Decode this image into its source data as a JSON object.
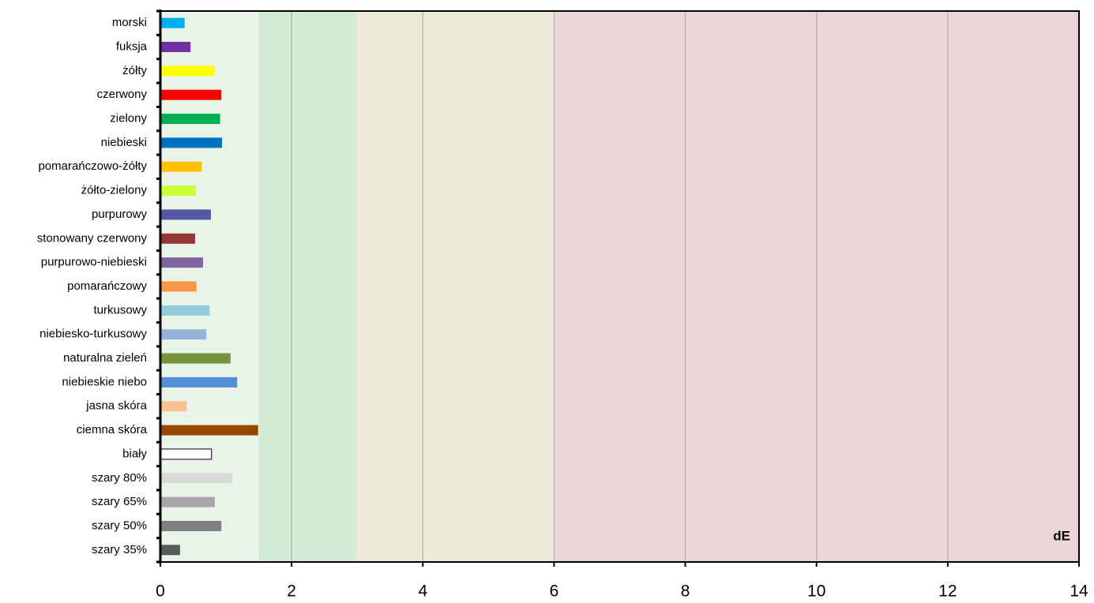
{
  "chart_data": {
    "type": "bar",
    "orientation": "horizontal",
    "x_label": "dE",
    "categories": [
      "morski",
      "fuksja",
      "żółty",
      "czerwony",
      "zielony",
      "niebieski",
      "pomarańczowo-żółty",
      "żółto-zielony",
      "purpurowy",
      "stonowany czerwony",
      "purpurowo-niebieski",
      "pomarańczowy",
      "turkusowy",
      "niebiesko-turkusowy",
      "naturalna zieleń",
      "niebieskie niebo",
      "jasna skóra",
      "ciemna skóra",
      "biały",
      "szary 80%",
      "szary 65%",
      "szary 50%",
      "szary 35%"
    ],
    "values": [
      0.37,
      0.46,
      0.83,
      0.93,
      0.91,
      0.94,
      0.63,
      0.54,
      0.77,
      0.53,
      0.65,
      0.55,
      0.75,
      0.7,
      1.07,
      1.17,
      0.4,
      1.49,
      0.78,
      1.1,
      0.83,
      0.93,
      0.3
    ],
    "colors": [
      "#00b0f0",
      "#7030a0",
      "#ffff00",
      "#ff0000",
      "#00b050",
      "#0070c0",
      "#ffc000",
      "#ccff33",
      "#5558a8",
      "#953735",
      "#8064a2",
      "#f79646",
      "#93cddd",
      "#95b3d7",
      "#77933c",
      "#558ed5",
      "#fac090",
      "#974806",
      "#ffffff",
      "#d9d9d9",
      "#a6a6a6",
      "#808080",
      "#595959"
    ],
    "xlim": [
      0,
      14
    ],
    "xticks": [
      0,
      2,
      4,
      6,
      8,
      10,
      12,
      14
    ],
    "grid": true,
    "bands": [
      {
        "from": 0,
        "to": 1.5,
        "color": "#e9f4e8"
      },
      {
        "from": 1.5,
        "to": 3,
        "color": "#d4ebd6"
      },
      {
        "from": 3,
        "to": 6,
        "color": "#ebe9d8"
      },
      {
        "from": 6,
        "to": 14,
        "color": "#ecd5d6"
      }
    ]
  }
}
